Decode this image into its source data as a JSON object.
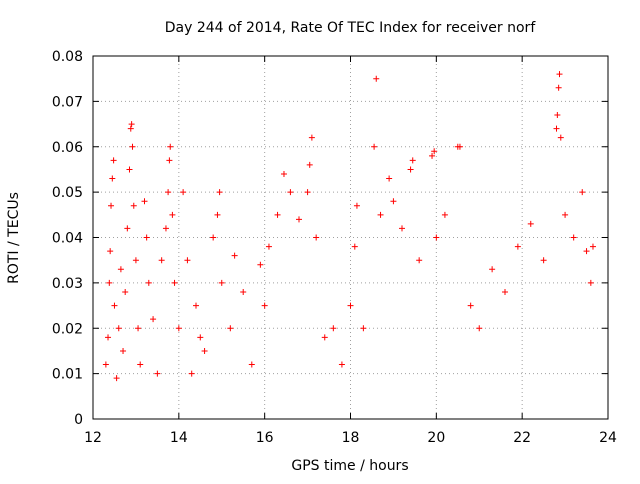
{
  "chart_data": {
    "type": "scatter",
    "title": "Day 244 of 2014, Rate Of TEC Index for receiver norf",
    "xlabel": "GPS time / hours",
    "ylabel": "ROTI / TECUs",
    "xlim": [
      12,
      24
    ],
    "ylim": [
      0,
      0.08
    ],
    "x_ticks": [
      12,
      14,
      16,
      18,
      20,
      22,
      24
    ],
    "x_tick_labels": [
      "12",
      "14",
      "16",
      "18",
      "20",
      "22",
      "24"
    ],
    "y_ticks": [
      0,
      0.01,
      0.02,
      0.03,
      0.04,
      0.05,
      0.06,
      0.07,
      0.08
    ],
    "y_tick_labels": [
      "0",
      "0.01",
      "0.02",
      "0.03",
      "0.04",
      "0.05",
      "0.06",
      "0.07",
      "0.08"
    ],
    "grid": true,
    "marker": "+",
    "series": [
      {
        "name": "ROTI",
        "color": "#ff0000",
        "points": [
          [
            12.3,
            0.012
          ],
          [
            12.35,
            0.018
          ],
          [
            12.38,
            0.03
          ],
          [
            12.4,
            0.037
          ],
          [
            12.42,
            0.047
          ],
          [
            12.45,
            0.053
          ],
          [
            12.48,
            0.057
          ],
          [
            12.5,
            0.025
          ],
          [
            12.55,
            0.009
          ],
          [
            12.6,
            0.02
          ],
          [
            12.65,
            0.033
          ],
          [
            12.7,
            0.015
          ],
          [
            12.75,
            0.028
          ],
          [
            12.8,
            0.042
          ],
          [
            12.85,
            0.055
          ],
          [
            12.88,
            0.064
          ],
          [
            12.9,
            0.065
          ],
          [
            12.92,
            0.06
          ],
          [
            12.95,
            0.047
          ],
          [
            13.0,
            0.035
          ],
          [
            13.05,
            0.02
          ],
          [
            13.1,
            0.012
          ],
          [
            13.2,
            0.048
          ],
          [
            13.25,
            0.04
          ],
          [
            13.3,
            0.03
          ],
          [
            13.4,
            0.022
          ],
          [
            13.5,
            0.01
          ],
          [
            13.6,
            0.035
          ],
          [
            13.7,
            0.042
          ],
          [
            13.75,
            0.05
          ],
          [
            13.78,
            0.057
          ],
          [
            13.8,
            0.06
          ],
          [
            13.85,
            0.045
          ],
          [
            13.9,
            0.03
          ],
          [
            14.0,
            0.02
          ],
          [
            14.1,
            0.05
          ],
          [
            14.2,
            0.035
          ],
          [
            14.3,
            0.01
          ],
          [
            14.4,
            0.025
          ],
          [
            14.5,
            0.018
          ],
          [
            14.6,
            0.015
          ],
          [
            14.8,
            0.04
          ],
          [
            14.9,
            0.045
          ],
          [
            14.95,
            0.05
          ],
          [
            15.0,
            0.03
          ],
          [
            15.2,
            0.02
          ],
          [
            15.3,
            0.036
          ],
          [
            15.5,
            0.028
          ],
          [
            15.7,
            0.012
          ],
          [
            15.9,
            0.034
          ],
          [
            16.0,
            0.025
          ],
          [
            16.1,
            0.038
          ],
          [
            16.3,
            0.045
          ],
          [
            16.45,
            0.054
          ],
          [
            16.6,
            0.05
          ],
          [
            16.8,
            0.044
          ],
          [
            17.0,
            0.05
          ],
          [
            17.05,
            0.056
          ],
          [
            17.1,
            0.062
          ],
          [
            17.2,
            0.04
          ],
          [
            17.4,
            0.018
          ],
          [
            17.6,
            0.02
          ],
          [
            17.8,
            0.012
          ],
          [
            18.0,
            0.025
          ],
          [
            18.1,
            0.038
          ],
          [
            18.15,
            0.047
          ],
          [
            18.3,
            0.02
          ],
          [
            18.55,
            0.06
          ],
          [
            18.6,
            0.075
          ],
          [
            18.7,
            0.045
          ],
          [
            18.9,
            0.053
          ],
          [
            19.0,
            0.048
          ],
          [
            19.2,
            0.042
          ],
          [
            19.4,
            0.055
          ],
          [
            19.45,
            0.057
          ],
          [
            19.6,
            0.035
          ],
          [
            19.9,
            0.058
          ],
          [
            19.95,
            0.059
          ],
          [
            20.0,
            0.04
          ],
          [
            20.2,
            0.045
          ],
          [
            20.5,
            0.06
          ],
          [
            20.55,
            0.06
          ],
          [
            20.8,
            0.025
          ],
          [
            21.0,
            0.02
          ],
          [
            21.3,
            0.033
          ],
          [
            21.6,
            0.028
          ],
          [
            21.9,
            0.038
          ],
          [
            22.2,
            0.043
          ],
          [
            22.5,
            0.035
          ],
          [
            22.8,
            0.064
          ],
          [
            22.82,
            0.067
          ],
          [
            22.85,
            0.073
          ],
          [
            22.87,
            0.076
          ],
          [
            22.9,
            0.062
          ],
          [
            23.0,
            0.045
          ],
          [
            23.2,
            0.04
          ],
          [
            23.4,
            0.05
          ],
          [
            23.5,
            0.037
          ],
          [
            23.6,
            0.03
          ],
          [
            23.65,
            0.038
          ]
        ]
      }
    ]
  }
}
